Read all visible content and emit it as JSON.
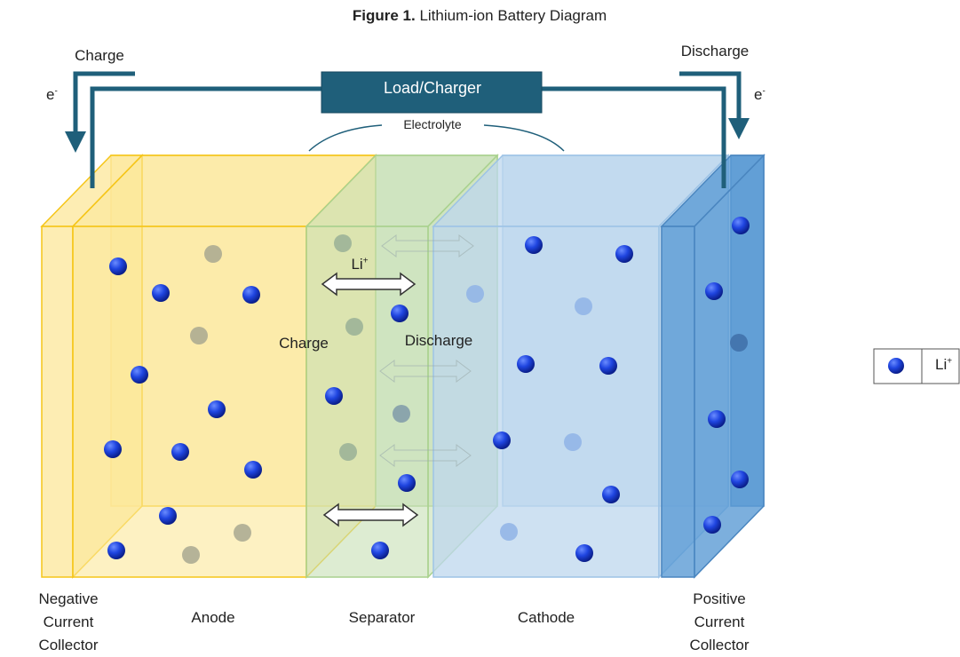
{
  "title": {
    "prefix": "Figure 1.",
    "text": "Lithium-ion Battery Diagram"
  },
  "circuit": {
    "load": "Load/Charger",
    "charge": "Charge",
    "discharge": "Discharge",
    "electron": {
      "base": "e",
      "sup": "-"
    }
  },
  "electrolyte": "Electrolyte",
  "ion_label": {
    "base": "Li",
    "sup": "+"
  },
  "directions": {
    "charge": "Charge",
    "discharge": "Discharge"
  },
  "layers": [
    "Negative Current Collector",
    "Anode",
    "Separator",
    "Cathode",
    "Positive Current Collector"
  ],
  "legend": {
    "label": {
      "base": "Li",
      "sup": "+"
    }
  }
}
